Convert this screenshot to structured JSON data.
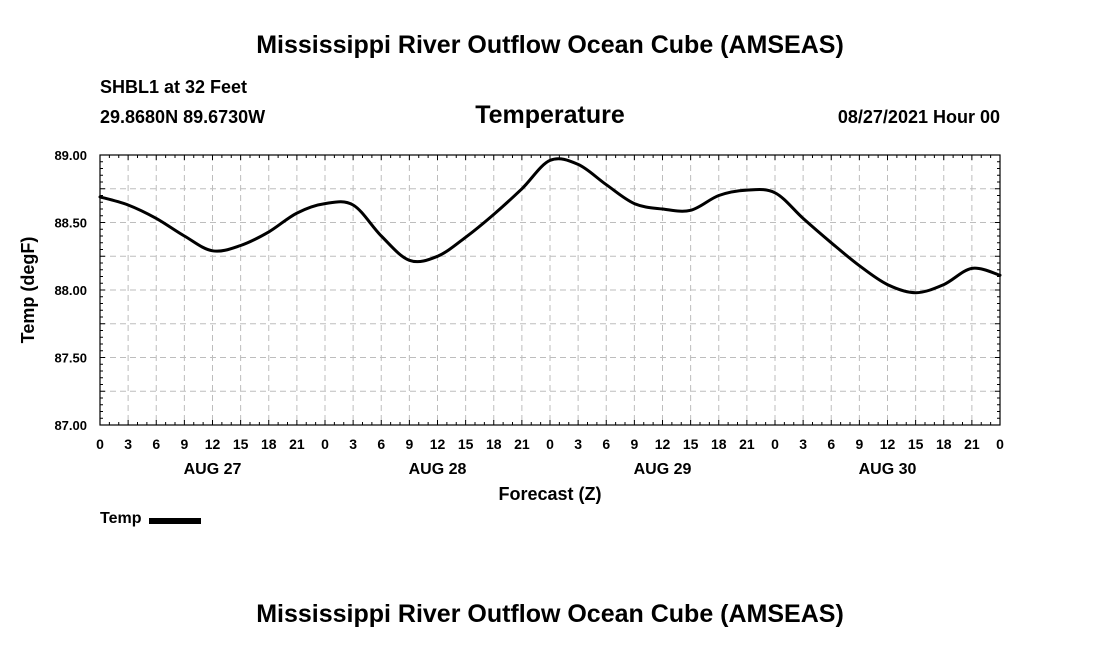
{
  "header": {
    "title": "Mississippi River Outflow Ocean Cube (AMSEAS)",
    "station": "SHBL1 at 32 Feet",
    "coords": "29.8680N  89.6730W",
    "subtitle": "Temperature",
    "date": "08/27/2021 Hour 00"
  },
  "footer": {
    "title": "Mississippi River Outflow Ocean Cube (AMSEAS)"
  },
  "legend": {
    "label": "Temp"
  },
  "chart_data": {
    "type": "line",
    "xlabel": "Forecast (Z)",
    "ylabel": "Temp (degF)",
    "ylim": [
      87.0,
      89.0
    ],
    "xlim": [
      0,
      96
    ],
    "yticks": [
      "87.00",
      "87.50",
      "88.00",
      "88.50",
      "89.00"
    ],
    "ytick_values": [
      87.0,
      87.5,
      88.0,
      88.5,
      89.0
    ],
    "xtick_labels": [
      "0",
      "3",
      "6",
      "9",
      "12",
      "15",
      "18",
      "21",
      "0",
      "3",
      "6",
      "9",
      "12",
      "15",
      "18",
      "21",
      "0",
      "3",
      "6",
      "9",
      "12",
      "15",
      "18",
      "21",
      "0",
      "3",
      "6",
      "9",
      "12",
      "15",
      "18",
      "21",
      "0"
    ],
    "day_labels": [
      {
        "label": "AUG 27",
        "hour": 12
      },
      {
        "label": "AUG 28",
        "hour": 36
      },
      {
        "label": "AUG 29",
        "hour": 60
      },
      {
        "label": "AUG 30",
        "hour": 84
      }
    ],
    "grid": true,
    "series": [
      {
        "name": "Temp",
        "color": "#000000",
        "x": [
          0,
          3,
          6,
          9,
          12,
          15,
          18,
          21,
          24,
          27,
          30,
          33,
          36,
          39,
          42,
          45,
          48,
          51,
          54,
          57,
          60,
          63,
          66,
          69,
          72,
          75,
          78,
          81,
          84,
          87,
          90,
          93,
          96
        ],
        "values": [
          88.69,
          88.63,
          88.53,
          88.4,
          88.29,
          88.33,
          88.43,
          88.57,
          88.64,
          88.63,
          88.4,
          88.22,
          88.25,
          88.39,
          88.56,
          88.75,
          88.96,
          88.93,
          88.78,
          88.64,
          88.6,
          88.59,
          88.7,
          88.74,
          88.72,
          88.53,
          88.35,
          88.18,
          88.04,
          87.98,
          88.04,
          88.16,
          88.11
        ]
      }
    ]
  }
}
